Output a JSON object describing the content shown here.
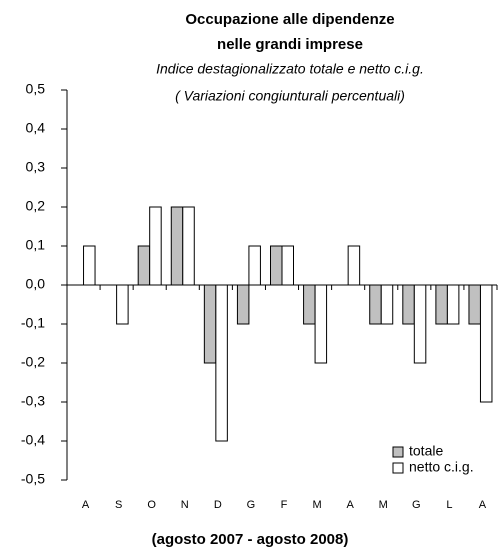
{
  "chart_data": {
    "type": "bar",
    "title": [
      "Occupazione alle dipendenze",
      "nelle grandi imprese"
    ],
    "subtitle": [
      "Indice destagionalizzato totale e netto c.i.g.",
      "( Variazioni congiunturali  percentuali)"
    ],
    "x_label": "(agosto 2007 - agosto 2008)",
    "categories": [
      "A",
      "S",
      "O",
      "N",
      "D",
      "G",
      "F",
      "M",
      "A",
      "M",
      "G",
      "L",
      "A"
    ],
    "series": [
      {
        "name": "totale",
        "color": "#c0c0c0",
        "values": [
          0,
          0,
          0.1,
          0.2,
          -0.2,
          -0.1,
          0.1,
          -0.1,
          0,
          -0.1,
          -0.1,
          -0.1,
          -0.1
        ]
      },
      {
        "name": "netto c.i.g.",
        "color": "#ffffff",
        "values": [
          0.1,
          -0.1,
          0.2,
          0.2,
          -0.4,
          0.1,
          0.1,
          -0.2,
          0.1,
          -0.1,
          -0.2,
          -0.1,
          -0.3
        ]
      }
    ],
    "ylim": [
      -0.5,
      0.5
    ],
    "yticks": [
      {
        "value": -0.5,
        "label": "-0,5"
      },
      {
        "value": -0.4,
        "label": "-0,4"
      },
      {
        "value": -0.3,
        "label": "-0,3"
      },
      {
        "value": -0.2,
        "label": "-0,2"
      },
      {
        "value": -0.1,
        "label": "-0,1"
      },
      {
        "value": 0,
        "label": "0,0"
      },
      {
        "value": 0.1,
        "label": "0,1"
      },
      {
        "value": 0.2,
        "label": "0,2"
      },
      {
        "value": 0.3,
        "label": "0,3"
      },
      {
        "value": 0.4,
        "label": "0,4"
      },
      {
        "value": 0.5,
        "label": "0,5"
      }
    ],
    "grid": false,
    "legend": "lower right"
  }
}
